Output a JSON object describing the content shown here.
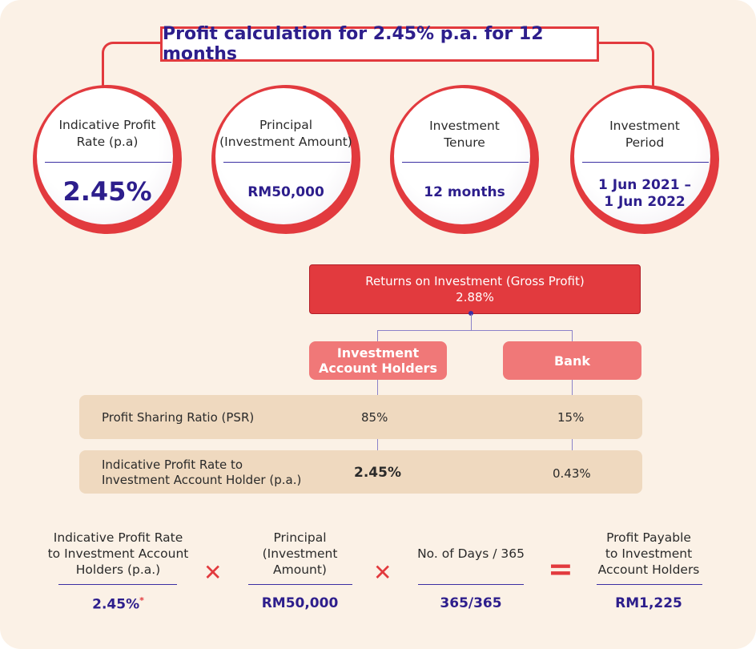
{
  "title": "Profit calculation for 2.45% p.a. for 12 months",
  "circles": [
    {
      "label_line1": "Indicative Profit",
      "label_line2": "Rate (p.a)",
      "value_line1": "2.45%",
      "value_line2": ""
    },
    {
      "label_line1": "Principal",
      "label_line2": "(Investment Amount)",
      "value_line1": "RM50,000",
      "value_line2": ""
    },
    {
      "label_line1": "Investment",
      "label_line2": "Tenure",
      "value_line1": "12 months",
      "value_line2": ""
    },
    {
      "label_line1": "Investment",
      "label_line2": "Period",
      "value_line1": "1 Jun 2021 –",
      "value_line2": "1 Jun 2022"
    }
  ],
  "returns": {
    "label": "Returns on Investment (Gross Profit)",
    "value": "2.88%"
  },
  "parties": {
    "holders_line1": "Investment",
    "holders_line2": "Account Holders",
    "bank": "Bank"
  },
  "rows": [
    {
      "label_line1": "Profit Sharing Ratio (PSR)",
      "label_line2": "",
      "holders": "85%",
      "bank": "15%"
    },
    {
      "label_line1": "Indicative Profit Rate to",
      "label_line2": "Investment Account Holder (p.a.)",
      "holders": "2.45%",
      "bank": "0.43%"
    }
  ],
  "formula": {
    "term1_lines": [
      "Indicative Profit Rate",
      "to Investment Account",
      "Holders (p.a.)"
    ],
    "term1_value": "2.45%",
    "term1_mark": "*",
    "term2_lines": [
      "Principal",
      "(Investment",
      "Amount)"
    ],
    "term2_value": "RM50,000",
    "term3_label": "No. of Days / 365",
    "term3_value": "365/365",
    "result_lines": [
      "Profit Payable",
      "to Investment",
      "Account Holders"
    ],
    "result_value": "RM1,225",
    "multiply_symbol": "✕",
    "equals_symbol": "="
  }
}
